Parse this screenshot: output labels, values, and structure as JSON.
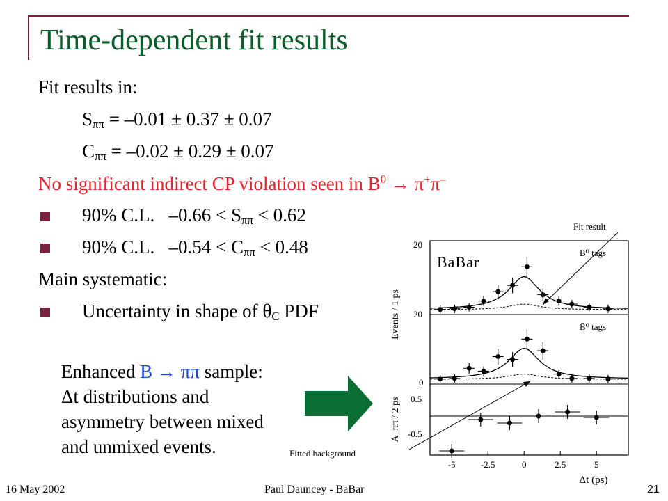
{
  "slide": {
    "title": "Time-dependent fit results",
    "fit_results_intro": "Fit results in:",
    "s_line": {
      "sym": "S",
      "sub": "ππ",
      "rest": " = –0.01 ± 0.37 ± 0.07"
    },
    "c_line": {
      "sym": "C",
      "sub": "ππ",
      "rest": " = –0.02 ± 0.29 ± 0.07"
    },
    "cp_line": {
      "text": "No significant indirect CP violation seen in B",
      "sup0": "0",
      "arrow": " → π",
      "sup1": "+",
      "pi": "π",
      "sup2": "–"
    },
    "cl_s": {
      "label": "90% C.L.",
      "pre": "–0.66 < S",
      "sub": "ππ",
      "post": " < 0.62"
    },
    "cl_c": {
      "label": "90% C.L.",
      "pre": "–0.54 < C",
      "sub": "ππ",
      "post": " < 0.48"
    },
    "main_systematic": "Main systematic:",
    "uncertainty": {
      "pre": "Uncertainty in shape of θ",
      "sub": "C",
      "post": " PDF"
    },
    "enhanced": {
      "l1a": "Enhanced ",
      "l1b": "B → ππ",
      "l1c": " sample:",
      "l2": "Δt distributions and",
      "l3": "asymmetry between mixed",
      "l4": "and unmixed events."
    },
    "footer": {
      "date": "16 May 2002",
      "author": "Paul Dauncey - BaBar",
      "page": "21"
    },
    "annotations": {
      "fit_result": "Fit result",
      "fitted_background": "Fitted background"
    }
  },
  "colors": {
    "title": "#0b5e2a",
    "frame": "#7a2340",
    "red": "#e8222b",
    "blue": "#1a4bd6",
    "arrow": "#0b6e35"
  },
  "chart_data": {
    "type": "scatter",
    "logo": "BaBar",
    "xlabel": "Δt (ps)",
    "x_ticks": [
      "-5",
      "-2.5",
      "0",
      "2.5",
      "5"
    ],
    "xlim": [
      -6.5,
      7.2
    ],
    "panels": [
      {
        "name": "B0 tags",
        "label": "B⁰ tags",
        "ylabel": "Events / 1 ps",
        "y_tick_labels": [
          "20",
          "20"
        ],
        "ylim": [
          0,
          21
        ],
        "points": [
          {
            "x": -5.8,
            "y": 0.3
          },
          {
            "x": -4.8,
            "y": 0.5
          },
          {
            "x": -3.8,
            "y": 1
          },
          {
            "x": -2.8,
            "y": 3
          },
          {
            "x": -1.8,
            "y": 6
          },
          {
            "x": -0.8,
            "y": 8
          },
          {
            "x": 0.2,
            "y": 14
          },
          {
            "x": 1.3,
            "y": 5
          },
          {
            "x": 2.4,
            "y": 3
          },
          {
            "x": 3.3,
            "y": 2
          },
          {
            "x": 4.5,
            "y": 1
          },
          {
            "x": 5.8,
            "y": 0.5
          }
        ]
      },
      {
        "name": "B0bar tags",
        "label": "B̄⁰ tags",
        "ylabel": "",
        "y_tick_labels": [
          "0"
        ],
        "ylim": [
          0,
          21
        ],
        "points": [
          {
            "x": -5.8,
            "y": 0.3
          },
          {
            "x": -4.8,
            "y": 0.5
          },
          {
            "x": -3.8,
            "y": 4
          },
          {
            "x": -2.8,
            "y": 3
          },
          {
            "x": -1.8,
            "y": 8
          },
          {
            "x": -0.8,
            "y": 7
          },
          {
            "x": 0.2,
            "y": 14
          },
          {
            "x": 1.3,
            "y": 10
          },
          {
            "x": 2.4,
            "y": 2
          },
          {
            "x": 3.3,
            "y": 0.5
          },
          {
            "x": 4.5,
            "y": 0.5
          },
          {
            "x": 5.8,
            "y": 0.3
          }
        ]
      },
      {
        "name": "asymmetry",
        "label": "",
        "ylabel": "A_ππ / 2 ps",
        "y_tick_labels": [
          "0.5",
          "-0.5"
        ],
        "ylim": [
          -1.0,
          0.8
        ],
        "points": [
          {
            "x": -5,
            "y": -1.0
          },
          {
            "x": -3,
            "y": -0.1
          },
          {
            "x": -1,
            "y": -0.2
          },
          {
            "x": 1,
            "y": 0.0
          },
          {
            "x": 3,
            "y": 0.12
          },
          {
            "x": 5,
            "y": -0.04
          }
        ]
      }
    ]
  }
}
